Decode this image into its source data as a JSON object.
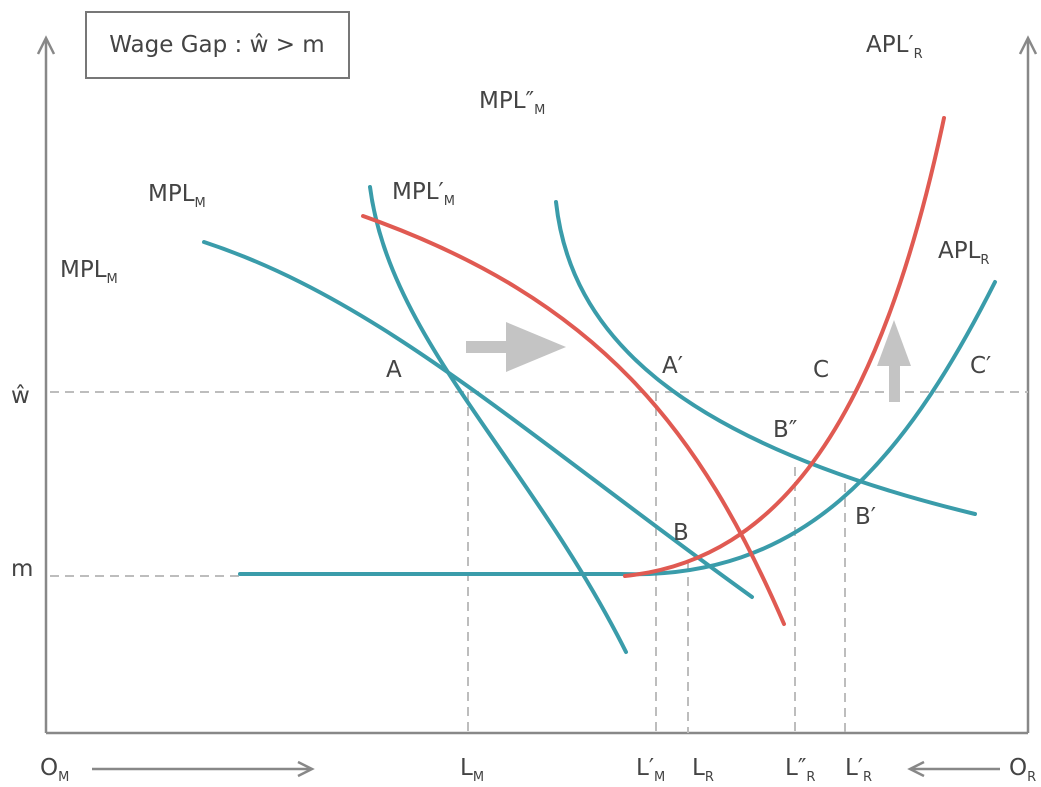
{
  "title": "Wage Gap : ŵ > m",
  "y_labels": {
    "w_hat": "ŵ",
    "m": "m"
  },
  "origins": {
    "left": {
      "main": "O",
      "sub": "M"
    },
    "right": {
      "main": "O",
      "sub": "R"
    }
  },
  "x_labels": {
    "LM": {
      "main": "L",
      "sub": "M"
    },
    "LpM": {
      "main": "L′",
      "sub": "M"
    },
    "LR": {
      "main": "L",
      "sub": "R"
    },
    "LppR": {
      "main": "L″",
      "sub": "R"
    },
    "LpR": {
      "main": "L′",
      "sub": "R"
    }
  },
  "curve_labels": {
    "mpl_m_outer": {
      "main": "MPL",
      "sub": "M"
    },
    "mpl_m": {
      "main": "MPL",
      "sub": "M"
    },
    "mpl_pm": {
      "main": "MPL′",
      "sub": "M"
    },
    "mpl_ppm": {
      "main": "MPL″",
      "sub": "M"
    },
    "apl_pr": {
      "main": "APL′",
      "sub": "R"
    },
    "apl_r": {
      "main": "APL",
      "sub": "R"
    }
  },
  "points": {
    "A": "A",
    "A_prime": "A′",
    "B": "B",
    "B_prime": "B′",
    "B_double": "B″",
    "C": "C",
    "C_prime": "C′"
  },
  "colors": {
    "teal": "#3a9caa",
    "red": "#e05a52",
    "arrow": "#c4c4c4",
    "axis": "#888888",
    "text": "#444444"
  }
}
